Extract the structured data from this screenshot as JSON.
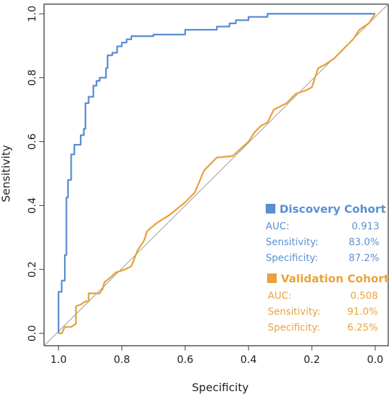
{
  "chart_data": {
    "type": "line",
    "xlabel": "Specificity",
    "ylabel": "Sensitivity",
    "xlim": [
      1.0,
      0.0
    ],
    "ylim": [
      0.0,
      1.0
    ],
    "x_ticks": [
      "1.0",
      "0.8",
      "0.6",
      "0.4",
      "0.2",
      "0.0"
    ],
    "y_ticks": [
      "0.0",
      "0.2",
      "0.4",
      "0.6",
      "0.8",
      "1.0"
    ],
    "reference_line": true,
    "legend_position": "bottom-right",
    "series": [
      {
        "name": "Discovery Cohort",
        "color": "#5b8fd0",
        "stats": [
          {
            "label": "AUC:",
            "value": "0.913"
          },
          {
            "label": "Sensitivity:",
            "value": "83.0%"
          },
          {
            "label": "Specificity:",
            "value": "87.2%"
          }
        ],
        "points": [
          [
            1.0,
            0.0
          ],
          [
            1.0,
            0.13
          ],
          [
            0.99,
            0.13
          ],
          [
            0.99,
            0.165
          ],
          [
            0.98,
            0.165
          ],
          [
            0.98,
            0.245
          ],
          [
            0.975,
            0.245
          ],
          [
            0.975,
            0.425
          ],
          [
            0.97,
            0.425
          ],
          [
            0.97,
            0.48
          ],
          [
            0.96,
            0.48
          ],
          [
            0.96,
            0.56
          ],
          [
            0.95,
            0.56
          ],
          [
            0.95,
            0.59
          ],
          [
            0.93,
            0.59
          ],
          [
            0.93,
            0.62
          ],
          [
            0.92,
            0.62
          ],
          [
            0.92,
            0.64
          ],
          [
            0.915,
            0.64
          ],
          [
            0.915,
            0.72
          ],
          [
            0.905,
            0.72
          ],
          [
            0.905,
            0.74
          ],
          [
            0.89,
            0.74
          ],
          [
            0.89,
            0.775
          ],
          [
            0.88,
            0.775
          ],
          [
            0.88,
            0.79
          ],
          [
            0.87,
            0.79
          ],
          [
            0.87,
            0.8
          ],
          [
            0.85,
            0.8
          ],
          [
            0.85,
            0.83
          ],
          [
            0.845,
            0.83
          ],
          [
            0.845,
            0.87
          ],
          [
            0.83,
            0.87
          ],
          [
            0.83,
            0.878
          ],
          [
            0.815,
            0.878
          ],
          [
            0.815,
            0.898
          ],
          [
            0.8,
            0.898
          ],
          [
            0.8,
            0.91
          ],
          [
            0.785,
            0.91
          ],
          [
            0.785,
            0.92
          ],
          [
            0.77,
            0.92
          ],
          [
            0.77,
            0.93
          ],
          [
            0.7,
            0.93
          ],
          [
            0.7,
            0.935
          ],
          [
            0.6,
            0.935
          ],
          [
            0.6,
            0.95
          ],
          [
            0.5,
            0.95
          ],
          [
            0.5,
            0.96
          ],
          [
            0.46,
            0.96
          ],
          [
            0.46,
            0.97
          ],
          [
            0.44,
            0.97
          ],
          [
            0.44,
            0.98
          ],
          [
            0.4,
            0.98
          ],
          [
            0.4,
            0.99
          ],
          [
            0.34,
            0.99
          ],
          [
            0.34,
            1.0
          ],
          [
            0.0,
            1.0
          ]
        ]
      },
      {
        "name": "Validation Cohort",
        "color": "#e8a33c",
        "stats": [
          {
            "label": "AUC:",
            "value": "0.508"
          },
          {
            "label": "Sensitivity:",
            "value": "91.0%"
          },
          {
            "label": "Specificity:",
            "value": "6.25%"
          }
        ],
        "points": [
          [
            1.0,
            0.0
          ],
          [
            0.99,
            0.0
          ],
          [
            0.98,
            0.02
          ],
          [
            0.96,
            0.02
          ],
          [
            0.945,
            0.03
          ],
          [
            0.945,
            0.085
          ],
          [
            0.93,
            0.09
          ],
          [
            0.915,
            0.1
          ],
          [
            0.905,
            0.1
          ],
          [
            0.905,
            0.125
          ],
          [
            0.87,
            0.125
          ],
          [
            0.86,
            0.14
          ],
          [
            0.855,
            0.16
          ],
          [
            0.83,
            0.18
          ],
          [
            0.82,
            0.19
          ],
          [
            0.79,
            0.2
          ],
          [
            0.77,
            0.21
          ],
          [
            0.76,
            0.235
          ],
          [
            0.75,
            0.26
          ],
          [
            0.73,
            0.29
          ],
          [
            0.72,
            0.32
          ],
          [
            0.69,
            0.345
          ],
          [
            0.65,
            0.37
          ],
          [
            0.6,
            0.41
          ],
          [
            0.57,
            0.44
          ],
          [
            0.54,
            0.51
          ],
          [
            0.5,
            0.55
          ],
          [
            0.45,
            0.555
          ],
          [
            0.4,
            0.6
          ],
          [
            0.38,
            0.63
          ],
          [
            0.36,
            0.65
          ],
          [
            0.34,
            0.66
          ],
          [
            0.32,
            0.7
          ],
          [
            0.28,
            0.72
          ],
          [
            0.25,
            0.75
          ],
          [
            0.22,
            0.76
          ],
          [
            0.2,
            0.77
          ],
          [
            0.19,
            0.8
          ],
          [
            0.18,
            0.83
          ],
          [
            0.16,
            0.84
          ],
          [
            0.13,
            0.86
          ],
          [
            0.1,
            0.89
          ],
          [
            0.07,
            0.92
          ],
          [
            0.05,
            0.95
          ],
          [
            0.02,
            0.97
          ],
          [
            0.0,
            1.0
          ]
        ]
      }
    ]
  }
}
